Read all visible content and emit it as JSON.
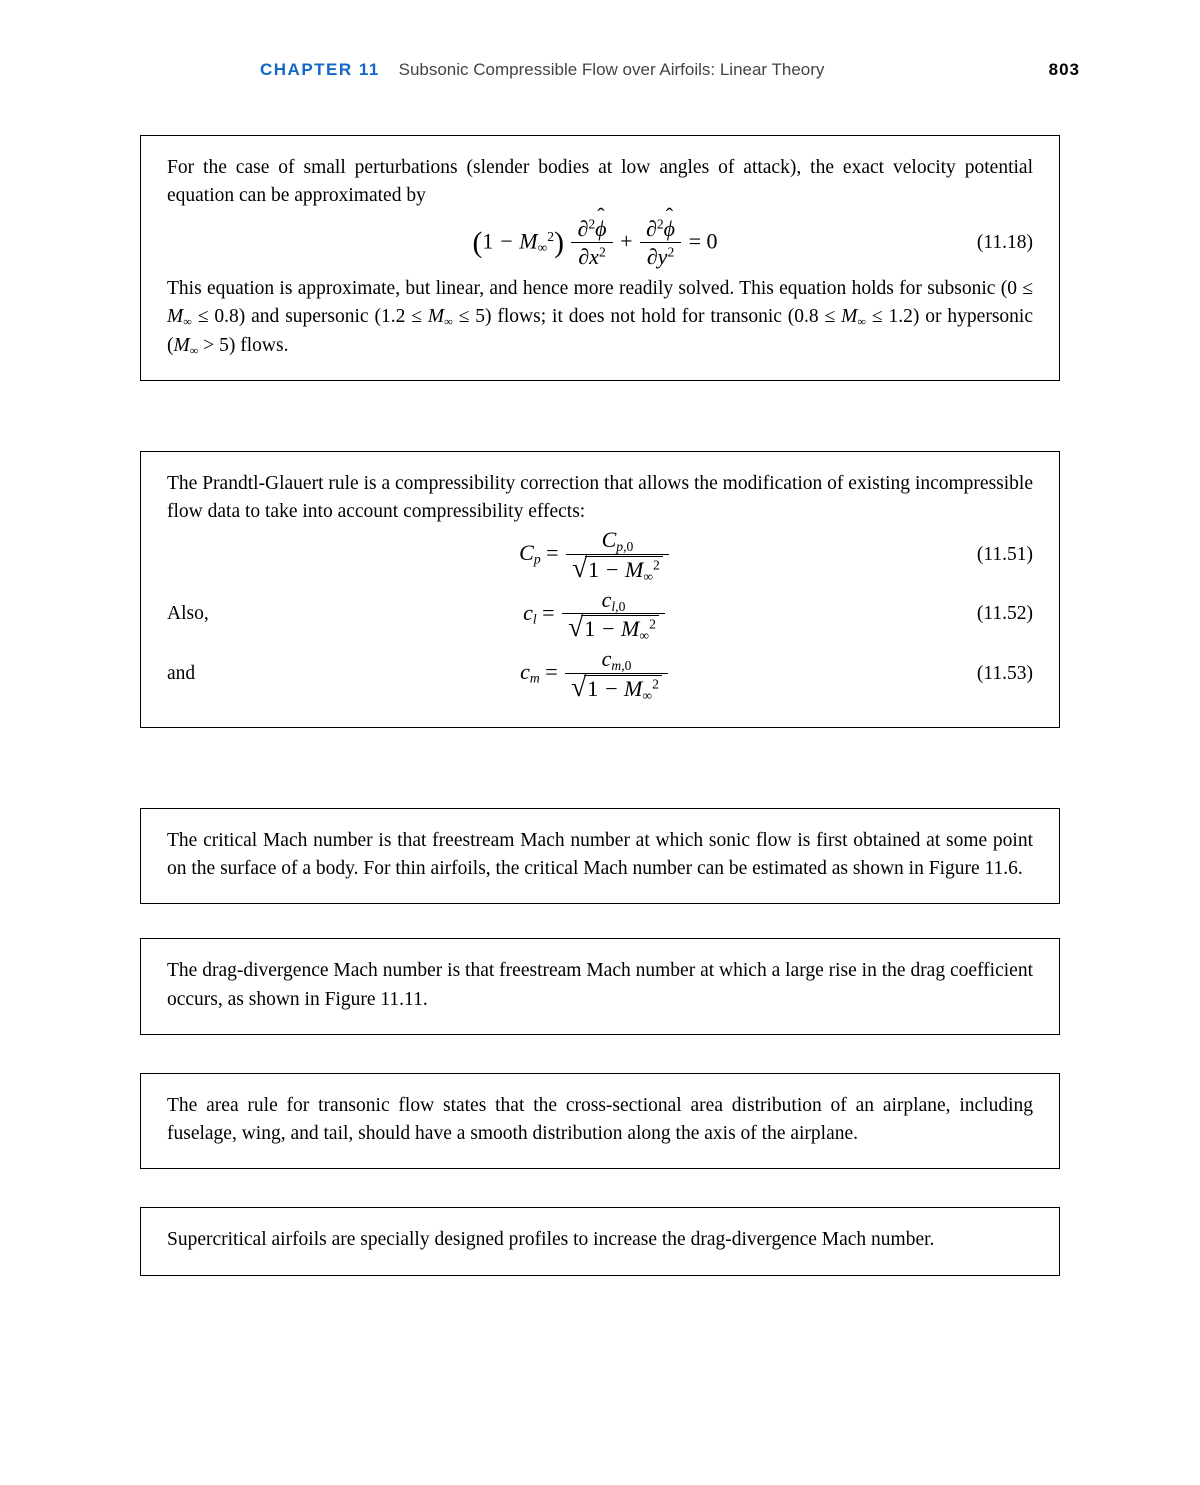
{
  "header": {
    "chapter_label": "CHAPTER 11",
    "chapter_title": "Subsonic Compressible Flow over Airfoils: Linear Theory",
    "page_number": "803"
  },
  "box1": {
    "para1": "For the case of small perturbations (slender bodies at low angles of attack), the exact velocity potential equation can be approximated by",
    "eq_num": "(11.18)",
    "para2_a": "This equation is approximate, but linear, and hence more readily solved. This equation holds for subsonic (0 ≤ ",
    "para2_b": " ≤ 0.8) and supersonic (1.2 ≤ ",
    "para2_c": " ≤ 5) flows; it does not hold for transonic (0.8 ≤ ",
    "para2_d": " ≤ 1.2) or hypersonic (",
    "para2_e": " > 5) flows."
  },
  "box2": {
    "para1": "The Prandtl-Glauert rule is a compressibility correction that allows the modification of existing incompressible flow data to take into account compressibility effects:",
    "eq_num_1": "(11.51)",
    "lead_2": "Also,",
    "eq_num_2": "(11.52)",
    "lead_3": "and",
    "eq_num_3": "(11.53)"
  },
  "box3": {
    "text": "The critical Mach number is that freestream Mach number at which sonic flow is first obtained at some point on the surface of a body. For thin airfoils, the critical Mach number can be estimated as shown in Figure 11.6."
  },
  "box4": {
    "text": "The drag-divergence Mach number is that freestream Mach number at which a large rise in the drag coefficient occurs, as shown in Figure 11.11."
  },
  "box5": {
    "text": "The area rule for transonic flow states that the cross-sectional area distribution of an airplane, including fuselage, wing, and tail, should have a smooth distribution along the axis of the airplane."
  },
  "box6": {
    "text": "Supercritical airfoils are specially designed profiles to increase the drag-divergence Mach number."
  }
}
